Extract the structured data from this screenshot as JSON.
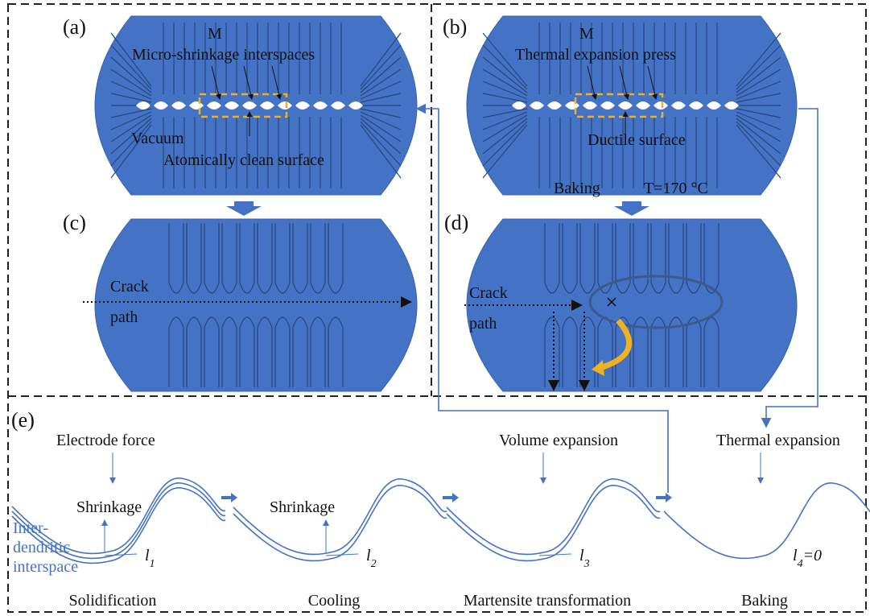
{
  "panels": {
    "a": {
      "label": "(a)",
      "marker": "M",
      "interspaces": "Micro-shrinkage interspaces",
      "vacuum": "Vacuum",
      "surface": "Atomically clean surface"
    },
    "b": {
      "label": "(b)",
      "marker": "M",
      "press": "Thermal expansion press",
      "surface": "Ductile  surface",
      "baking": "Baking",
      "temperature": "T=170 °C"
    },
    "c": {
      "label": "(c)",
      "crack_path": [
        "Crack",
        "path"
      ]
    },
    "d": {
      "label": "(d)",
      "crack_path": [
        "Crack",
        "path"
      ]
    },
    "e": {
      "label": "(e)",
      "interspace": [
        "Inter-",
        "dendritic",
        "interspace"
      ],
      "stages": [
        {
          "force": "Electrode force",
          "effect": "Shrinkage",
          "gap": {
            "symbol": "l",
            "subscript": "1"
          },
          "name": "Solidification"
        },
        {
          "effect": "Shrinkage",
          "gap": {
            "symbol": "l",
            "subscript": "2"
          },
          "name": "Cooling"
        },
        {
          "force": "Volume expansion",
          "gap": {
            "symbol": "l",
            "subscript": "3"
          },
          "name": "Martensite transformation"
        },
        {
          "force": "Thermal expansion",
          "gap": {
            "symbol": "l",
            "subscript": "4",
            "suffix": "=0"
          },
          "name": "Baking"
        }
      ]
    }
  }
}
